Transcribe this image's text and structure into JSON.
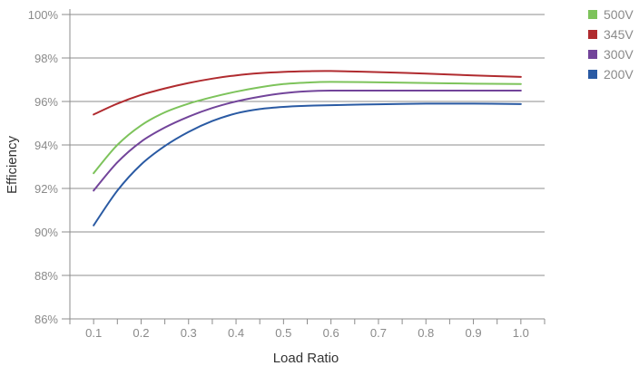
{
  "chart_data": {
    "type": "line",
    "xlabel": "Load Ratio",
    "ylabel": "Efficiency",
    "x_ticks": [
      "0.1",
      "0.2",
      "0.3",
      "0.4",
      "0.5",
      "0.6",
      "0.7",
      "0.8",
      "0.9",
      "1.0"
    ],
    "y_ticks": [
      "86%",
      "88%",
      "90%",
      "92%",
      "94%",
      "96%",
      "98%",
      "100%"
    ],
    "xlim": [
      0.05,
      1.05
    ],
    "ylim": [
      86,
      100
    ],
    "grid": "horizontal",
    "legend_position": "top-right",
    "x": [
      0.1,
      0.15,
      0.2,
      0.25,
      0.3,
      0.35,
      0.4,
      0.45,
      0.5,
      0.55,
      0.6,
      0.7,
      0.8,
      0.9,
      1.0
    ],
    "series": [
      {
        "name": "500V",
        "color": "#7dc35b",
        "values": [
          92.7,
          94.0,
          94.9,
          95.5,
          95.9,
          96.2,
          96.45,
          96.65,
          96.8,
          96.87,
          96.9,
          96.88,
          96.85,
          96.82,
          96.8
        ]
      },
      {
        "name": "345V",
        "color": "#b02b2f",
        "values": [
          95.4,
          95.9,
          96.3,
          96.6,
          96.85,
          97.05,
          97.2,
          97.3,
          97.36,
          97.39,
          97.4,
          97.35,
          97.28,
          97.2,
          97.13
        ]
      },
      {
        "name": "300V",
        "color": "#72449a",
        "values": [
          91.9,
          93.2,
          94.15,
          94.8,
          95.3,
          95.7,
          96.0,
          96.22,
          96.38,
          96.47,
          96.5,
          96.5,
          96.5,
          96.5,
          96.5
        ]
      },
      {
        "name": "200V",
        "color": "#2a5aa3",
        "values": [
          90.3,
          91.9,
          93.1,
          93.95,
          94.6,
          95.1,
          95.45,
          95.65,
          95.75,
          95.8,
          95.83,
          95.87,
          95.9,
          95.9,
          95.88
        ]
      }
    ]
  }
}
